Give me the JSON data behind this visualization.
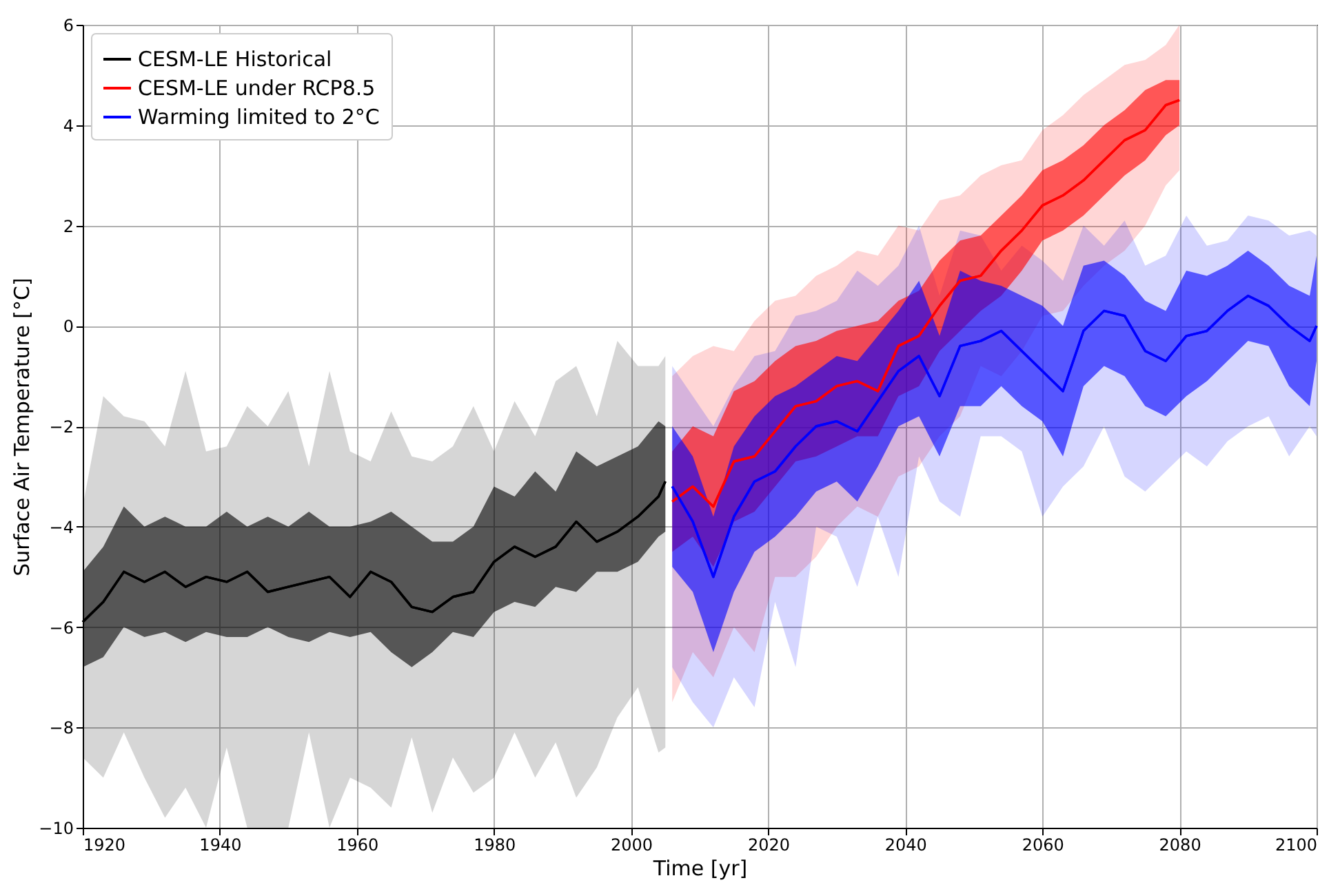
{
  "chart_data": {
    "type": "line",
    "xlabel": "Time [yr]",
    "ylabel": "Surface Air Temperature [°C]",
    "xlim": [
      1920,
      2100
    ],
    "xticks": [
      1920,
      1940,
      1960,
      1980,
      2000,
      2020,
      2040,
      2060,
      2080,
      2100
    ],
    "ylim": [
      -10,
      6
    ],
    "yticks": [
      -10,
      -8,
      -6,
      -4,
      -2,
      0,
      2,
      4,
      6
    ],
    "grid": true,
    "legend": "top left",
    "marker": "none",
    "line_style": "solid",
    "series": [
      {
        "color": "#000000",
        "x": [
          1920,
          1923,
          1926,
          1929,
          1932,
          1935,
          1938,
          1941,
          1944,
          1947,
          1950,
          1953,
          1956,
          1959,
          1962,
          1965,
          1968,
          1971,
          1974,
          1977,
          1980,
          1983,
          1986,
          1989,
          1992,
          1995,
          1998,
          2001,
          2004,
          2005
        ],
        "values": [
          -5.9,
          -5.5,
          -4.9,
          -5.1,
          -4.9,
          -5.2,
          -5.0,
          -5.1,
          -4.9,
          -5.3,
          -5.2,
          -5.1,
          -5.0,
          -5.4,
          -4.9,
          -5.1,
          -5.6,
          -5.7,
          -5.4,
          -5.3,
          -4.7,
          -4.4,
          -4.6,
          -4.4,
          -3.9,
          -4.3,
          -4.1,
          -3.8,
          -3.4,
          -3.1
        ],
        "upper": [
          -3.6,
          -1.4,
          -1.8,
          -1.9,
          -2.4,
          -0.9,
          -2.5,
          -2.4,
          -1.6,
          -2.0,
          -1.3,
          -2.8,
          -0.9,
          -2.5,
          -2.7,
          -1.7,
          -2.6,
          -2.7,
          -2.4,
          -1.6,
          -2.5,
          -1.5,
          -2.2,
          -1.1,
          -0.8,
          -1.8,
          -0.3,
          -0.8,
          -0.8,
          -0.6
        ],
        "lower": [
          -8.6,
          -9.0,
          -8.1,
          -9.0,
          -9.8,
          -9.2,
          -10,
          -8.4,
          -10,
          -10,
          -10,
          -8.1,
          -10,
          -9.0,
          -9.2,
          -9.6,
          -8.2,
          -9.7,
          -8.6,
          -9.3,
          -9.0,
          -8.1,
          -9.0,
          -8.3,
          -9.4,
          -8.8,
          -7.8,
          -7.2,
          -8.5,
          -8.4
        ]
      },
      {
        "color": "#ff0000",
        "x": [
          2006,
          2009,
          2012,
          2015,
          2018,
          2021,
          2024,
          2027,
          2030,
          2033,
          2036,
          2039,
          2042,
          2045,
          2048,
          2051,
          2054,
          2057,
          2060,
          2063,
          2066,
          2069,
          2072,
          2075,
          2078,
          2080
        ],
        "values": [
          -3.5,
          -3.2,
          -3.6,
          -2.7,
          -2.6,
          -2.1,
          -1.6,
          -1.5,
          -1.2,
          -1.1,
          -1.3,
          -0.4,
          -0.2,
          0.4,
          0.9,
          1.0,
          1.5,
          1.9,
          2.4,
          2.6,
          2.9,
          3.3,
          3.7,
          3.9,
          4.4,
          4.5
        ],
        "upper": [
          -1.0,
          -0.6,
          -0.4,
          -0.5,
          0.1,
          0.5,
          0.6,
          1.0,
          1.2,
          1.5,
          1.4,
          2.0,
          1.9,
          2.5,
          2.6,
          3.0,
          3.2,
          3.3,
          3.9,
          4.2,
          4.6,
          4.9,
          5.2,
          5.3,
          5.6,
          6.0
        ],
        "lower": [
          -7.5,
          -6.5,
          -7.0,
          -6.0,
          -6.5,
          -5.0,
          -5.0,
          -4.6,
          -4.0,
          -3.6,
          -3.8,
          -3.0,
          -2.8,
          -2.2,
          -1.8,
          -0.8,
          -1.0,
          -0.5,
          0.2,
          0.3,
          0.8,
          1.2,
          1.5,
          2.0,
          2.8,
          3.1
        ]
      },
      {
        "color": "#0000ff",
        "x": [
          2006,
          2009,
          2012,
          2015,
          2018,
          2021,
          2024,
          2027,
          2030,
          2033,
          2036,
          2039,
          2042,
          2045,
          2048,
          2051,
          2054,
          2057,
          2060,
          2063,
          2066,
          2069,
          2072,
          2075,
          2078,
          2081,
          2084,
          2087,
          2090,
          2093,
          2096,
          2099,
          2100
        ],
        "values": [
          -3.2,
          -3.9,
          -5.0,
          -3.8,
          -3.1,
          -2.9,
          -2.4,
          -2.0,
          -1.9,
          -2.1,
          -1.5,
          -0.9,
          -0.6,
          -1.4,
          -0.4,
          -0.3,
          -0.1,
          -0.5,
          -0.9,
          -1.3,
          -0.1,
          0.3,
          0.2,
          -0.5,
          -0.7,
          -0.2,
          -0.1,
          0.3,
          0.6,
          0.4,
          0.0,
          -0.3,
          0.0
        ],
        "upper": [
          -0.8,
          -1.4,
          -2.0,
          -1.2,
          -0.6,
          -0.5,
          0.2,
          0.3,
          0.5,
          1.1,
          0.8,
          1.2,
          2.0,
          0.6,
          1.9,
          1.8,
          1.1,
          1.6,
          1.3,
          0.9,
          2.0,
          1.6,
          2.1,
          1.2,
          1.4,
          2.2,
          1.6,
          1.7,
          2.2,
          2.1,
          1.8,
          1.9,
          1.8
        ],
        "lower": [
          -6.8,
          -7.5,
          -8.0,
          -7.0,
          -7.6,
          -5.5,
          -6.8,
          -4.0,
          -4.2,
          -5.2,
          -3.8,
          -5.0,
          -2.6,
          -3.5,
          -3.8,
          -2.2,
          -2.2,
          -2.5,
          -3.8,
          -3.2,
          -2.8,
          -2.0,
          -3.0,
          -3.3,
          -2.9,
          -2.5,
          -2.8,
          -2.3,
          -2.0,
          -1.8,
          -2.6,
          -2.0,
          -2.2
        ]
      },
      {
        "name": "CESM-LE Historical",
        "color": "#000000",
        "x": [
          1920,
          1923,
          1926,
          1929,
          1932,
          1935,
          1938,
          1941,
          1944,
          1947,
          1950,
          1953,
          1956,
          1959,
          1962,
          1965,
          1968,
          1971,
          1974,
          1977,
          1980,
          1983,
          1986,
          1989,
          1992,
          1995,
          1998,
          2001,
          2004,
          2005
        ],
        "values": [
          -5.9,
          -5.5,
          -4.9,
          -5.1,
          -4.9,
          -5.2,
          -5.0,
          -5.1,
          -4.9,
          -5.3,
          -5.2,
          -5.1,
          -5.0,
          -5.4,
          -4.9,
          -5.1,
          -5.6,
          -5.7,
          -5.4,
          -5.3,
          -4.7,
          -4.4,
          -4.6,
          -4.4,
          -3.9,
          -4.3,
          -4.1,
          -3.8,
          -3.4,
          -3.1
        ],
        "upper": [
          -4.9,
          -4.4,
          -3.6,
          -4.0,
          -3.8,
          -4.0,
          -4.0,
          -3.7,
          -4.0,
          -3.8,
          -4.0,
          -3.7,
          -4.0,
          -4.0,
          -3.9,
          -3.7,
          -4.0,
          -4.3,
          -4.3,
          -4.0,
          -3.2,
          -3.4,
          -2.9,
          -3.3,
          -2.5,
          -2.8,
          -2.6,
          -2.4,
          -1.9,
          -2.0
        ],
        "lower": [
          -6.8,
          -6.6,
          -6.0,
          -6.2,
          -6.1,
          -6.3,
          -6.1,
          -6.2,
          -6.2,
          -6.0,
          -6.2,
          -6.3,
          -6.1,
          -6.2,
          -6.1,
          -6.5,
          -6.8,
          -6.5,
          -6.1,
          -6.2,
          -5.7,
          -5.5,
          -5.6,
          -5.2,
          -5.3,
          -4.9,
          -4.9,
          -4.7,
          -4.2,
          -4.1
        ]
      },
      {
        "name": "CESM-LE under RCP8.5",
        "color": "#ff0000",
        "x": [
          2006,
          2009,
          2012,
          2015,
          2018,
          2021,
          2024,
          2027,
          2030,
          2033,
          2036,
          2039,
          2042,
          2045,
          2048,
          2051,
          2054,
          2057,
          2060,
          2063,
          2066,
          2069,
          2072,
          2075,
          2078,
          2080
        ],
        "values": [
          -3.5,
          -3.2,
          -3.6,
          -2.7,
          -2.6,
          -2.1,
          -1.6,
          -1.5,
          -1.2,
          -1.1,
          -1.3,
          -0.4,
          -0.2,
          0.4,
          0.9,
          1.0,
          1.5,
          1.9,
          2.4,
          2.6,
          2.9,
          3.3,
          3.7,
          3.9,
          4.4,
          4.5
        ],
        "upper": [
          -2.5,
          -2.0,
          -2.2,
          -1.3,
          -1.1,
          -0.7,
          -0.4,
          -0.3,
          -0.1,
          0.0,
          0.1,
          0.5,
          0.7,
          1.3,
          1.7,
          1.8,
          2.2,
          2.6,
          3.1,
          3.3,
          3.6,
          4.0,
          4.3,
          4.7,
          4.9,
          4.9
        ],
        "lower": [
          -4.5,
          -4.2,
          -4.8,
          -3.9,
          -3.7,
          -3.2,
          -2.7,
          -2.6,
          -2.4,
          -2.2,
          -2.2,
          -1.4,
          -1.2,
          -0.5,
          -0.1,
          0.3,
          0.6,
          1.1,
          1.7,
          1.9,
          2.2,
          2.6,
          3.0,
          3.3,
          3.8,
          4.0
        ]
      },
      {
        "name": "Warming limited to 2°C",
        "color": "#0000ff",
        "x": [
          2006,
          2009,
          2012,
          2015,
          2018,
          2021,
          2024,
          2027,
          2030,
          2033,
          2036,
          2039,
          2042,
          2045,
          2048,
          2051,
          2054,
          2057,
          2060,
          2063,
          2066,
          2069,
          2072,
          2075,
          2078,
          2081,
          2084,
          2087,
          2090,
          2093,
          2096,
          2099,
          2100
        ],
        "values": [
          -3.2,
          -3.9,
          -5.0,
          -3.8,
          -3.1,
          -2.9,
          -2.4,
          -2.0,
          -1.9,
          -2.1,
          -1.5,
          -0.9,
          -0.6,
          -1.4,
          -0.4,
          -0.3,
          -0.1,
          -0.5,
          -0.9,
          -1.3,
          -0.1,
          0.3,
          0.2,
          -0.5,
          -0.7,
          -0.2,
          -0.1,
          0.3,
          0.6,
          0.4,
          0.0,
          -0.3,
          0.0
        ],
        "upper": [
          -2.0,
          -2.6,
          -3.8,
          -2.4,
          -1.8,
          -1.4,
          -1.2,
          -0.9,
          -0.6,
          -0.7,
          -0.2,
          0.3,
          0.9,
          -0.2,
          1.1,
          0.9,
          0.8,
          0.6,
          0.4,
          0.0,
          1.2,
          1.3,
          1.0,
          0.5,
          0.3,
          1.1,
          1.0,
          1.2,
          1.5,
          1.2,
          0.8,
          0.6,
          1.4
        ],
        "lower": [
          -4.8,
          -5.3,
          -6.5,
          -5.3,
          -4.5,
          -4.2,
          -3.8,
          -3.3,
          -3.1,
          -3.5,
          -2.8,
          -2.0,
          -1.8,
          -2.6,
          -1.6,
          -1.6,
          -1.2,
          -1.6,
          -1.9,
          -2.6,
          -1.2,
          -0.8,
          -1.0,
          -1.6,
          -1.8,
          -1.4,
          -1.1,
          -0.7,
          -0.3,
          -0.4,
          -1.2,
          -1.6,
          -0.7
        ]
      }
    ]
  }
}
